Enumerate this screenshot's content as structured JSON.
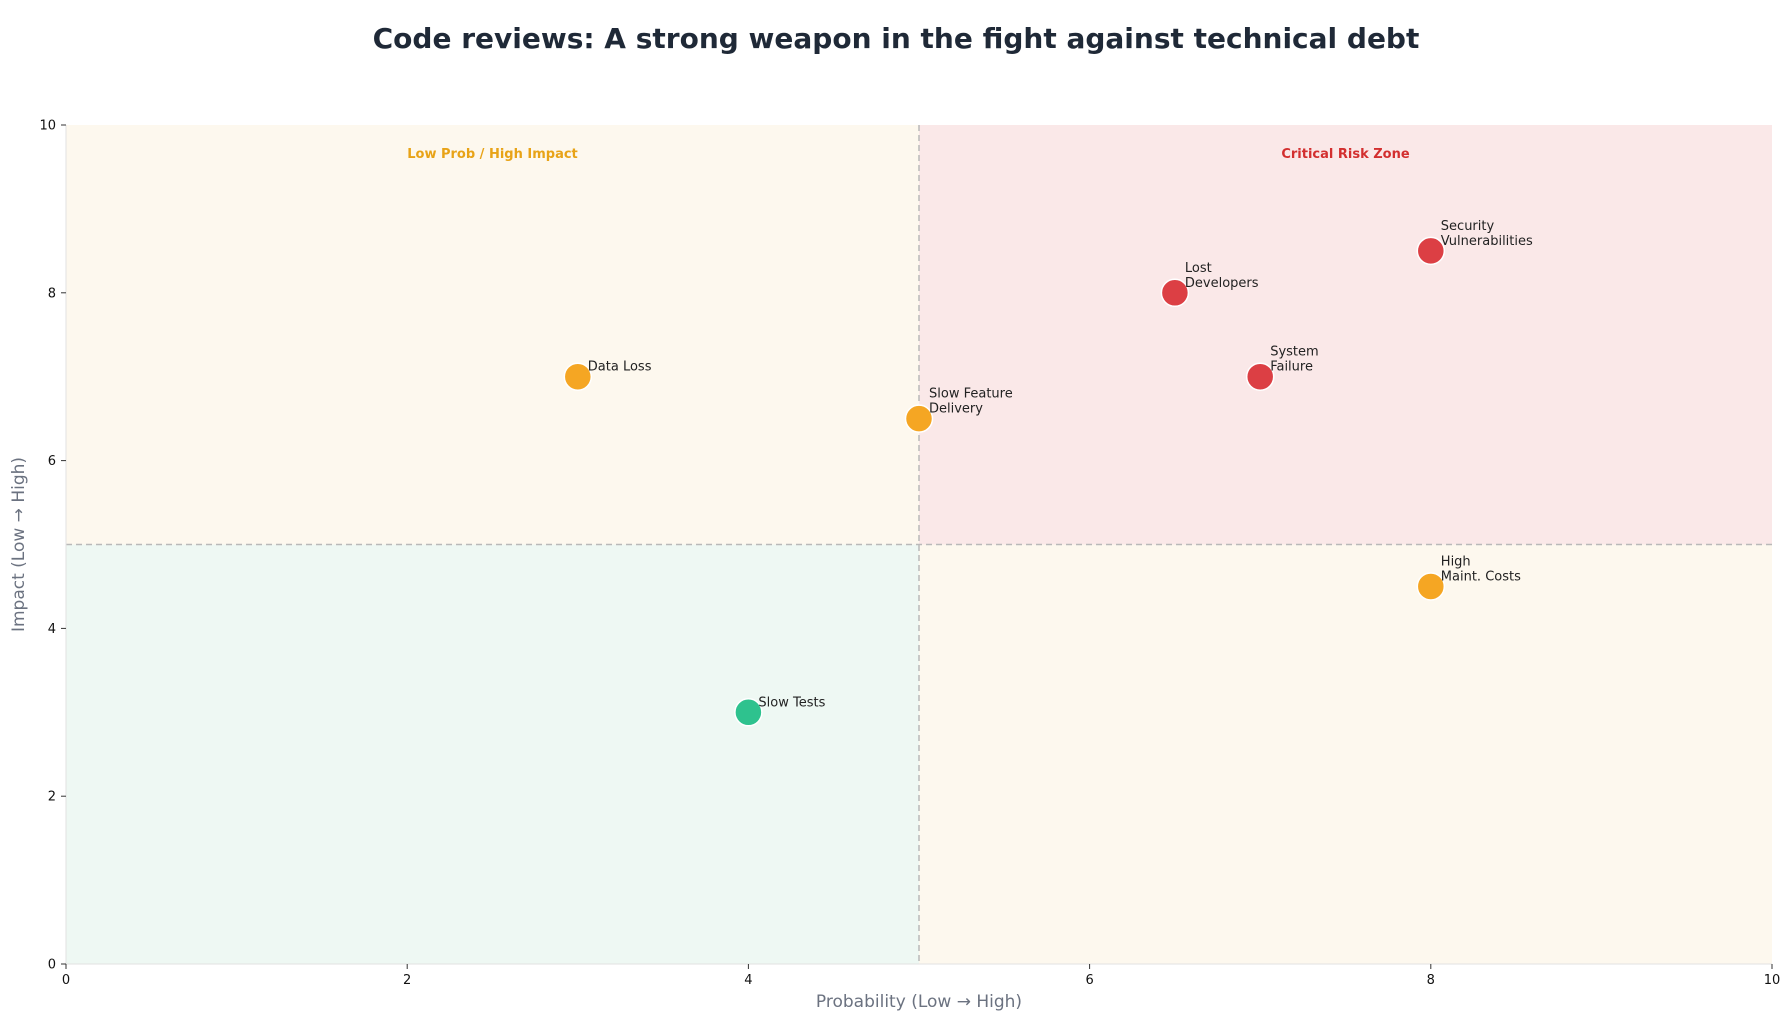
{
  "chart_data": {
    "type": "scatter",
    "title": "Code reviews: A strong weapon in the fight against technical debt",
    "xlabel": "Probability (Low → High)",
    "ylabel": "Impact (Low → High)",
    "xlim": [
      0,
      10
    ],
    "ylim": [
      0,
      10
    ],
    "xticks": [
      0,
      2,
      4,
      6,
      8,
      10
    ],
    "yticks": [
      0,
      2,
      4,
      6,
      8,
      10
    ],
    "grid": false,
    "divider": {
      "x": 5,
      "y": 5
    },
    "quadrants": [
      {
        "name": "low-low",
        "x": [
          0,
          5
        ],
        "y": [
          0,
          5
        ],
        "color": "#eef8f3",
        "label": ""
      },
      {
        "name": "low-high",
        "x": [
          0,
          5
        ],
        "y": [
          5,
          10
        ],
        "color": "#fdf8ee",
        "label": "Low Prob / High Impact",
        "label_color": "#e8a317"
      },
      {
        "name": "high-low",
        "x": [
          5,
          10
        ],
        "y": [
          0,
          5
        ],
        "color": "#fdf8ee",
        "label": ""
      },
      {
        "name": "high-high",
        "x": [
          5,
          10
        ],
        "y": [
          5,
          10
        ],
        "color": "#fae8e8",
        "label": "Critical Risk Zone",
        "label_color": "#d32f2f"
      }
    ],
    "points": [
      {
        "lines": [
          "Security",
          "Vulnerabilities"
        ],
        "x": 8,
        "y": 8.5,
        "color": "#dc3f44"
      },
      {
        "lines": [
          "Lost",
          "Developers"
        ],
        "x": 6.5,
        "y": 8,
        "color": "#dc3f44"
      },
      {
        "lines": [
          "System",
          "Failure"
        ],
        "x": 7,
        "y": 7,
        "color": "#dc3f44"
      },
      {
        "lines": [
          "Data Loss"
        ],
        "x": 3,
        "y": 7,
        "color": "#f5a623"
      },
      {
        "lines": [
          "Slow Feature",
          "Delivery"
        ],
        "x": 5,
        "y": 6.5,
        "color": "#f5a623"
      },
      {
        "lines": [
          "High",
          "Maint. Costs"
        ],
        "x": 8,
        "y": 4.5,
        "color": "#f5a623"
      },
      {
        "lines": [
          "Slow Tests"
        ],
        "x": 4,
        "y": 3,
        "color": "#2ec28e"
      }
    ]
  }
}
